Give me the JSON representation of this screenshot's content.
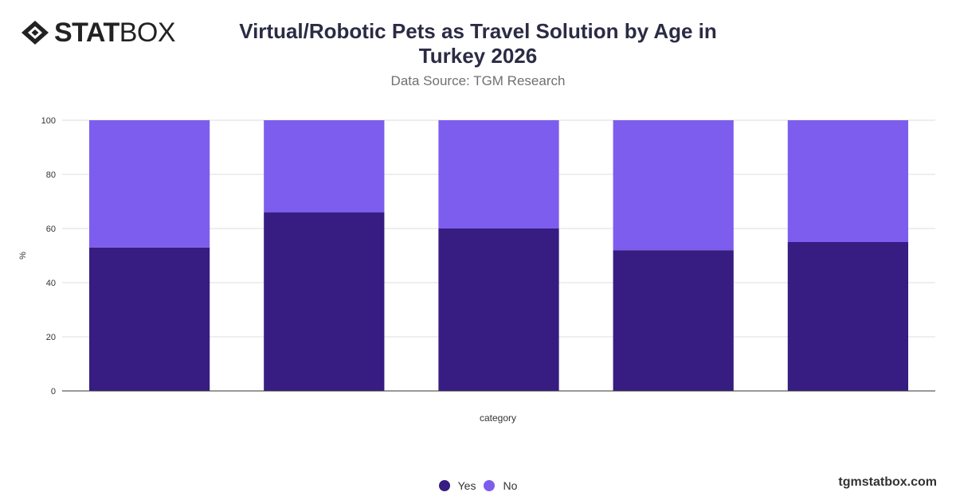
{
  "brand": {
    "logo_bold": "STAT",
    "logo_light": "BOX"
  },
  "footer": {
    "site": "tgmstatbox.com"
  },
  "colors": {
    "yes": "#371c82",
    "no": "#7d5ded",
    "axis": "#333333",
    "grid": "#dddddd"
  },
  "chart_data": {
    "type": "bar",
    "stacked": true,
    "title": "Virtual/Robotic Pets as Travel Solution by Age in Turkey 2026",
    "subtitle": "Data Source: TGM Research",
    "xlabel": "category",
    "ylabel": "%",
    "ylim": [
      0,
      100
    ],
    "yticks": [
      0,
      20,
      40,
      60,
      80,
      100
    ],
    "categories": [
      "",
      "",
      "",
      "",
      ""
    ],
    "series": [
      {
        "name": "Yes",
        "values": [
          53,
          66,
          60,
          52,
          55
        ]
      },
      {
        "name": "No",
        "values": [
          47,
          34,
          40,
          48,
          45
        ]
      }
    ],
    "grid": true,
    "legend": "bottom-center"
  }
}
